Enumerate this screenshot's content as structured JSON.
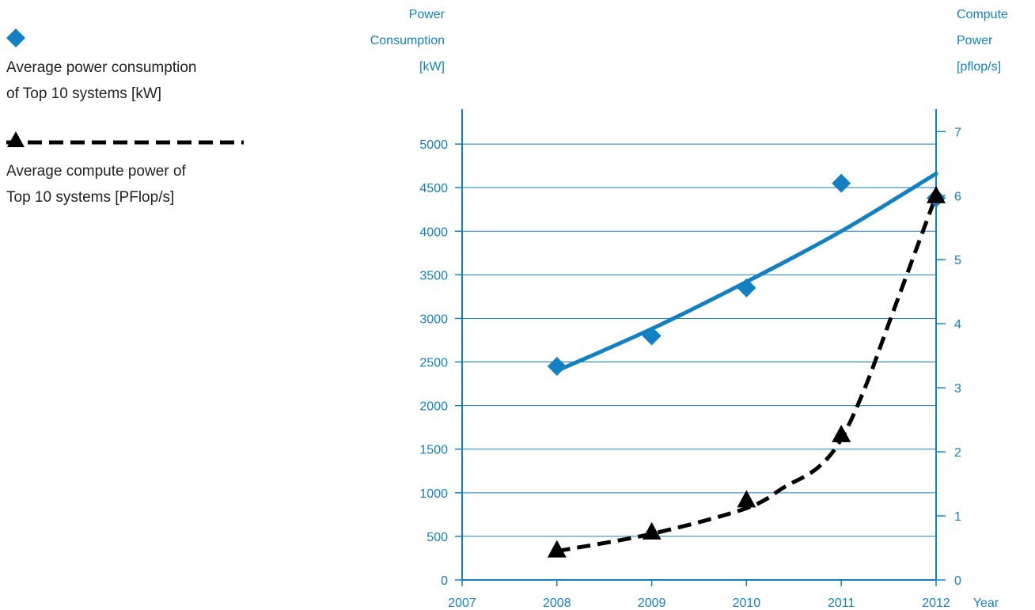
{
  "chart_data": {
    "type": "line",
    "x_label": "Year",
    "x_ticks": [
      "2007",
      "2008",
      "2009",
      "2010",
      "2011",
      "2012"
    ],
    "xlim": [
      2007,
      2012
    ],
    "y_left": {
      "label_lines": [
        "Power",
        "Consumption",
        "[kW]"
      ],
      "ticks": [
        "0",
        "500",
        "1000",
        "1500",
        "2000",
        "2500",
        "3000",
        "3500",
        "4000",
        "4500",
        "5000"
      ],
      "ylim": [
        0,
        5400
      ]
    },
    "y_right": {
      "label_lines": [
        "Compute",
        "Power",
        "[pflop/s]"
      ],
      "ticks": [
        "0",
        "1",
        "2",
        "3",
        "4",
        "5",
        "6",
        "7"
      ],
      "ylim": [
        0,
        7.35
      ]
    },
    "grid": "horizontal",
    "legend_position": "left",
    "series": [
      {
        "name": "Average power consumption of Top 10 systems [kW]",
        "legend_lines": [
          "Average power consumption",
          "of Top 10 systems [kW]"
        ],
        "axis": "left",
        "marker": "diamond",
        "color": "#1480c4",
        "x": [
          2008,
          2009,
          2010,
          2011,
          2012
        ],
        "y": [
          2450,
          2800,
          3350,
          4550,
          4380
        ],
        "trend": {
          "style": "solid",
          "x": [
            2008,
            2009,
            2010,
            2011,
            2012
          ],
          "y": [
            2400,
            2880,
            3420,
            4000,
            4660
          ]
        }
      },
      {
        "name": "Average compute power of Top 10 systems [PFlop/s]",
        "legend_lines": [
          "Average compute power of",
          "Top 10 systems [PFlop/s]"
        ],
        "axis": "right",
        "marker": "triangle",
        "color": "#000000",
        "x": [
          2008,
          2009,
          2010,
          2011,
          2012
        ],
        "y": [
          0.45,
          0.73,
          1.23,
          2.25,
          5.98
        ],
        "trend": {
          "style": "dashed",
          "x": [
            2008,
            2009,
            2010,
            2010.4,
            2010.75,
            2011,
            2011.25,
            2011.5,
            2011.75,
            2012
          ],
          "y": [
            0.45,
            0.72,
            1.12,
            1.45,
            1.75,
            2.2,
            3.0,
            4.0,
            5.0,
            6.0
          ]
        }
      }
    ]
  }
}
